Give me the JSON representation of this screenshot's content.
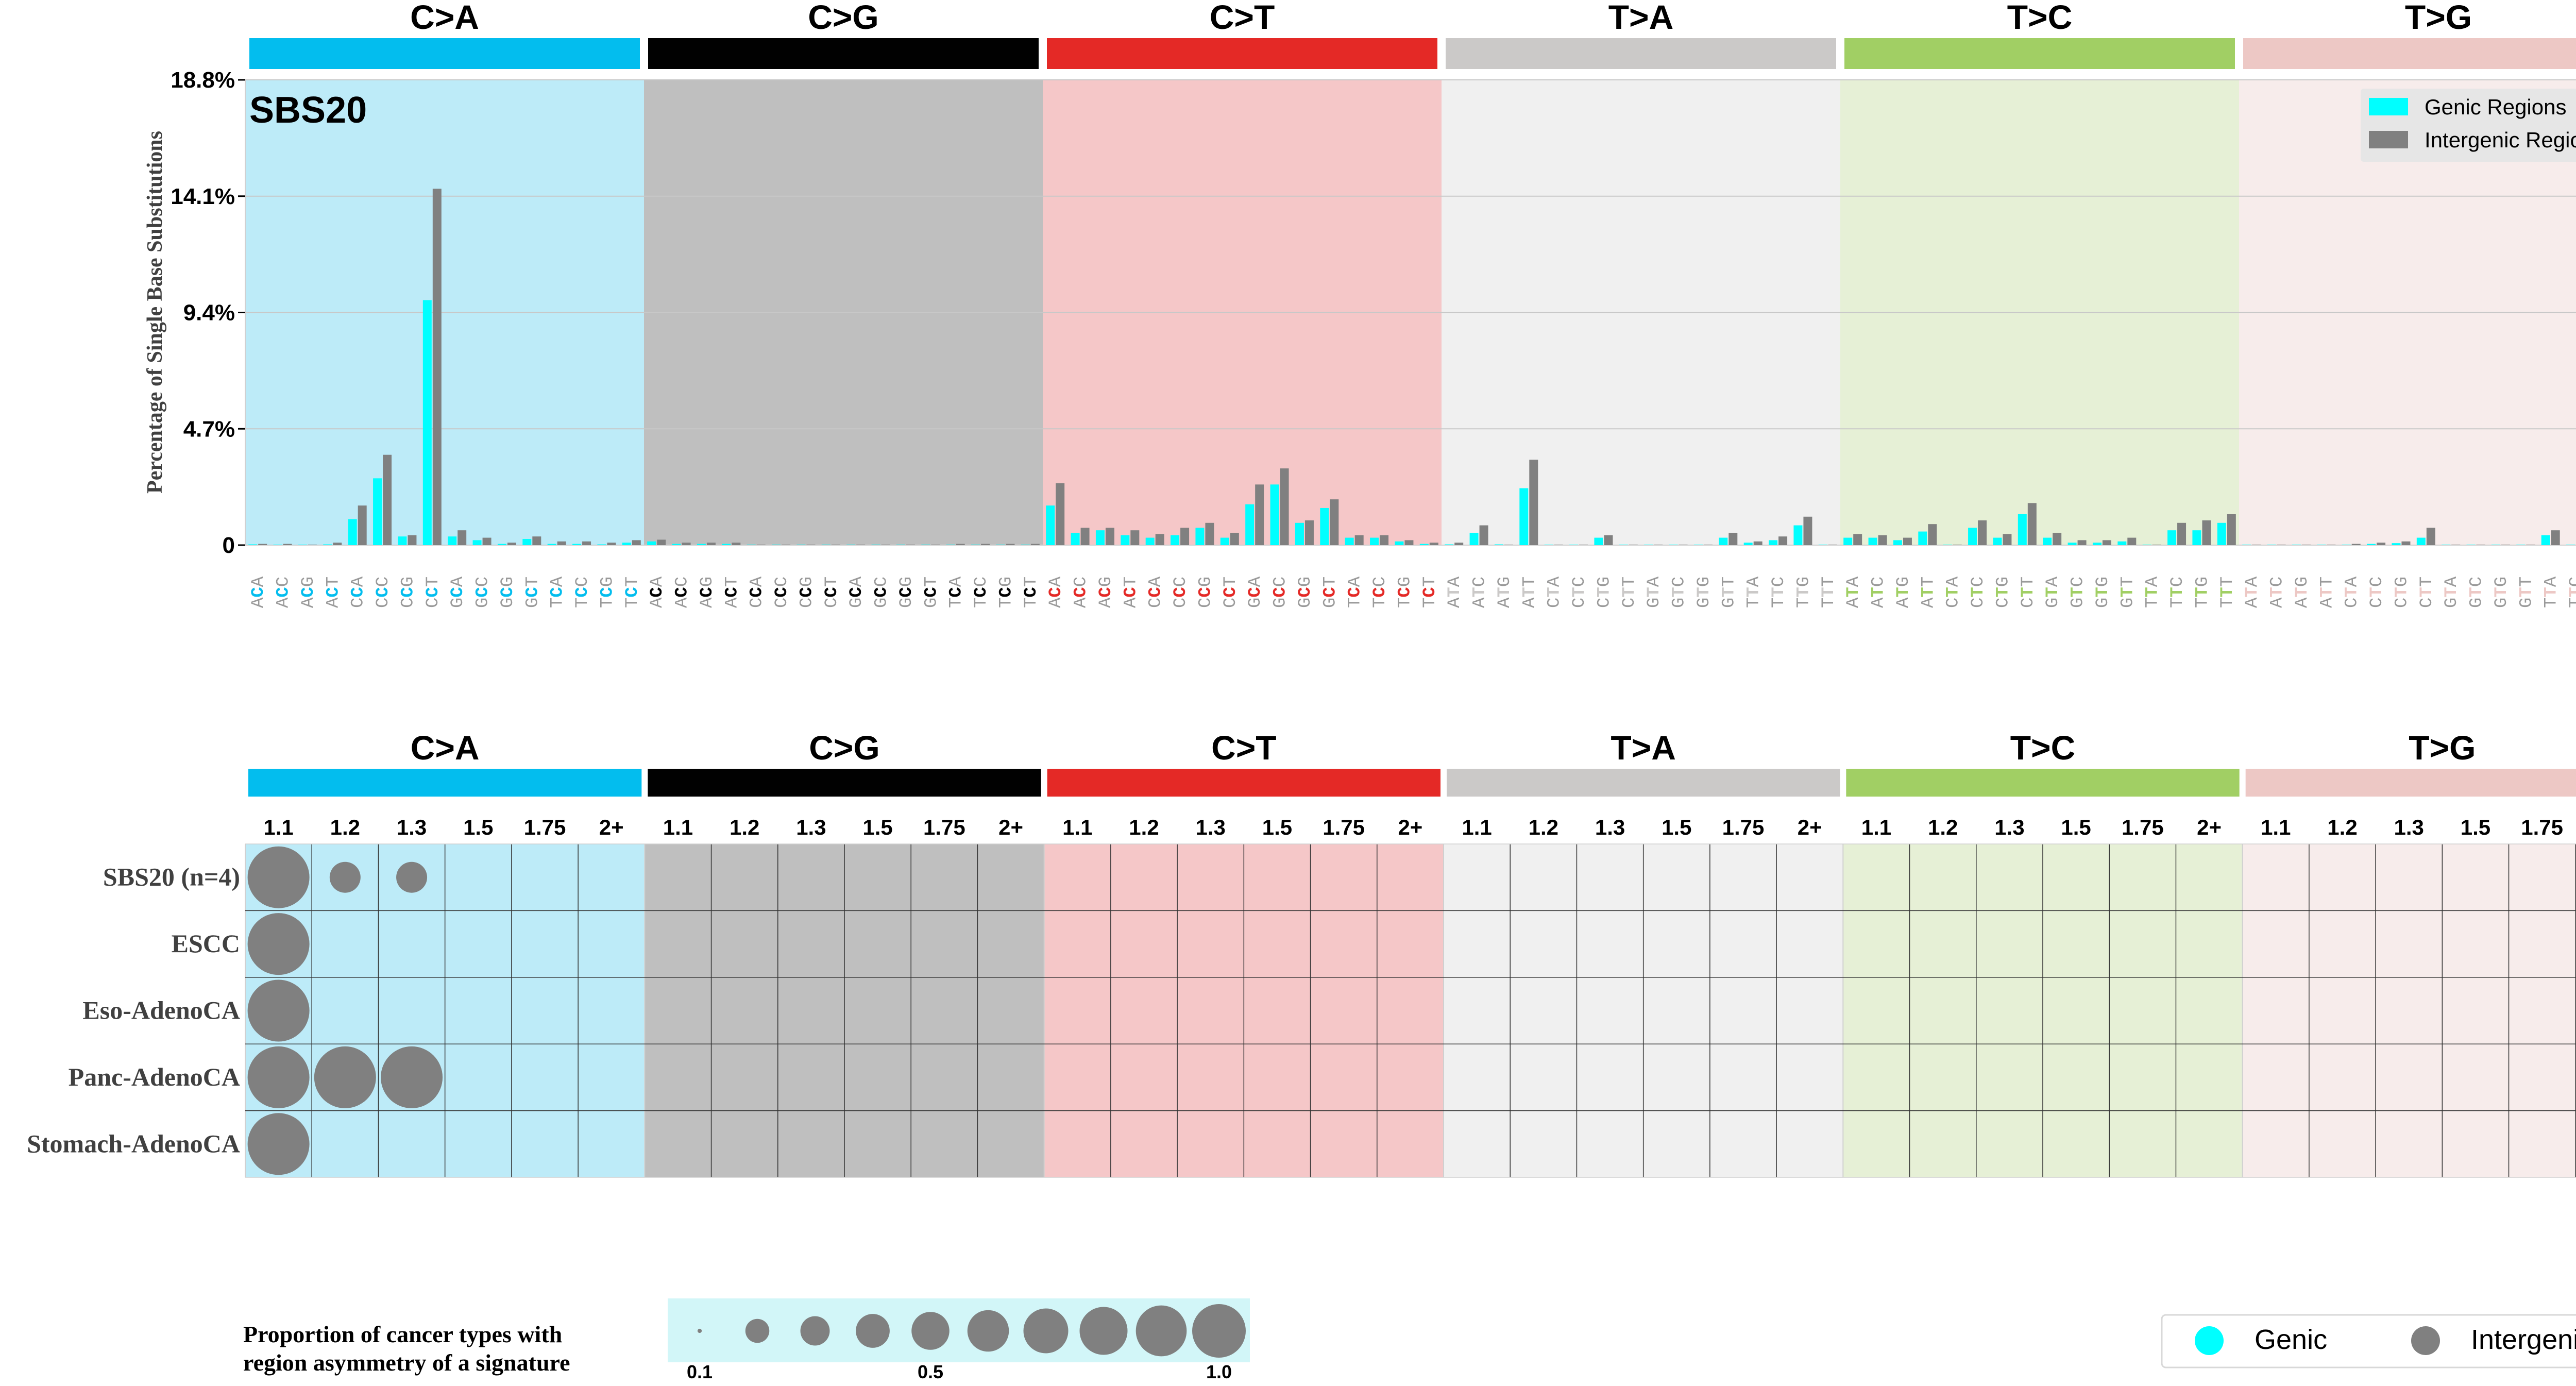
{
  "chart_data": [
    {
      "type": "bar",
      "title": "SBS20",
      "ylabel": "Percentage of Single Base Substitutions",
      "y_ticks": [
        "0",
        "4.7%",
        "9.4%",
        "14.1%",
        "18.8%"
      ],
      "ylim": [
        0,
        18.8
      ],
      "mutation_types": [
        {
          "label": "C>A",
          "color": "#03bdee",
          "panel_color": "#bdebf8",
          "ref": "C"
        },
        {
          "label": "C>G",
          "color": "#010101",
          "panel_color": "#bfbfbf",
          "ref": "C"
        },
        {
          "label": "C>T",
          "color": "#e42926",
          "panel_color": "#f5c7c8",
          "ref": "C"
        },
        {
          "label": "T>A",
          "color": "#cbc9c8",
          "panel_color": "#f0f0f0",
          "ref": "T"
        },
        {
          "label": "T>C",
          "color": "#a1cf64",
          "panel_color": "#e6f0d6",
          "ref": "T"
        },
        {
          "label": "T>G",
          "color": "#edc8c5",
          "panel_color": "#f7eceb",
          "ref": "T"
        }
      ],
      "series": [
        {
          "name": "Genic Regions",
          "color": "#00ffff",
          "values": [
            0.03,
            0.02,
            0.02,
            0.03,
            1.05,
            2.7,
            0.35,
            9.9,
            0.35,
            0.2,
            0.05,
            0.25,
            0.05,
            0.05,
            0.03,
            0.1,
            0.15,
            0.05,
            0.05,
            0.05,
            0.02,
            0.02,
            0.02,
            0.02,
            0.02,
            0.02,
            0.02,
            0.02,
            0.02,
            0.02,
            0.02,
            0.02,
            1.6,
            0.5,
            0.6,
            0.4,
            0.3,
            0.4,
            0.7,
            0.3,
            1.65,
            2.45,
            0.9,
            1.5,
            0.3,
            0.3,
            0.15,
            0.05,
            0.03,
            0.5,
            0.03,
            2.3,
            0.02,
            0.02,
            0.3,
            0.02,
            0.02,
            0.02,
            0.02,
            0.3,
            0.1,
            0.2,
            0.8,
            0.02,
            0.3,
            0.3,
            0.2,
            0.55,
            0.02,
            0.7,
            0.3,
            1.25,
            0.3,
            0.1,
            0.1,
            0.15,
            0.02,
            0.6,
            0.6,
            0.9,
            0.02,
            0.02,
            0.02,
            0.02,
            0.02,
            0.05,
            0.08,
            0.3,
            0.02,
            0.02,
            0.02,
            0.02,
            0.4,
            0.02,
            0.05,
            0.05
          ]
        },
        {
          "name": "Intergenic Regions",
          "color": "#808080",
          "values": [
            0.05,
            0.05,
            0.02,
            0.1,
            1.6,
            3.65,
            0.4,
            14.4,
            0.6,
            0.3,
            0.1,
            0.35,
            0.15,
            0.15,
            0.1,
            0.2,
            0.22,
            0.1,
            0.1,
            0.1,
            0.02,
            0.02,
            0.02,
            0.02,
            0.02,
            0.02,
            0.02,
            0.02,
            0.05,
            0.05,
            0.05,
            0.05,
            2.5,
            0.7,
            0.7,
            0.6,
            0.45,
            0.7,
            0.9,
            0.5,
            2.45,
            3.1,
            1.0,
            1.85,
            0.4,
            0.4,
            0.2,
            0.1,
            0.1,
            0.8,
            0.02,
            3.45,
            0.02,
            0.02,
            0.4,
            0.02,
            0.02,
            0.02,
            0.02,
            0.5,
            0.15,
            0.35,
            1.15,
            0.02,
            0.45,
            0.4,
            0.3,
            0.85,
            0.02,
            1.0,
            0.45,
            1.7,
            0.5,
            0.2,
            0.2,
            0.3,
            0.02,
            0.9,
            1.0,
            1.25,
            0.02,
            0.02,
            0.02,
            0.02,
            0.05,
            0.1,
            0.15,
            0.7,
            0.02,
            0.02,
            0.02,
            0.02,
            0.6,
            0.05,
            0.1,
            0.1
          ]
        }
      ],
      "legend": [
        "Genic Regions",
        "Intergenic Regions"
      ],
      "legend_position": "top-right"
    },
    {
      "type": "scatter",
      "title": "Region asymmetry bubble matrix",
      "categories": [
        "1.1",
        "1.2",
        "1.3",
        "1.5",
        "1.75",
        "2+"
      ],
      "rows": [
        "SBS20 (n=4)",
        "ESCC",
        "Eso-AdenoCA",
        "Panc-AdenoCA",
        "Stomach-AdenoCA"
      ],
      "points": [
        {
          "row": 0,
          "type": 0,
          "ratio": 0,
          "series": "Intergenic",
          "proportion": 1.0
        },
        {
          "row": 0,
          "type": 0,
          "ratio": 1,
          "series": "Intergenic",
          "proportion": 0.25
        },
        {
          "row": 0,
          "type": 0,
          "ratio": 2,
          "series": "Intergenic",
          "proportion": 0.25
        },
        {
          "row": 1,
          "type": 0,
          "ratio": 0,
          "series": "Intergenic",
          "proportion": 1.0
        },
        {
          "row": 2,
          "type": 0,
          "ratio": 0,
          "series": "Intergenic",
          "proportion": 1.0
        },
        {
          "row": 3,
          "type": 0,
          "ratio": 0,
          "series": "Intergenic",
          "proportion": 1.0
        },
        {
          "row": 3,
          "type": 0,
          "ratio": 1,
          "series": "Intergenic",
          "proportion": 1.0
        },
        {
          "row": 3,
          "type": 0,
          "ratio": 2,
          "series": "Intergenic",
          "proportion": 1.0
        },
        {
          "row": 4,
          "type": 0,
          "ratio": 0,
          "series": "Intergenic",
          "proportion": 1.0
        }
      ],
      "size_legend": {
        "title_line1": "Proportion of cancer types with",
        "title_line2": "region asymmetry of a signature",
        "values": [
          0.1,
          0.2,
          0.3,
          0.4,
          0.5,
          0.6,
          0.7,
          0.8,
          0.9,
          1.0
        ],
        "tick_labels": [
          "0.1",
          "0.5",
          "1.0"
        ]
      },
      "color_legend": [
        {
          "label": "Genic",
          "color": "#00ffff"
        },
        {
          "label": "Intergenic",
          "color": "#808080"
        }
      ]
    }
  ]
}
